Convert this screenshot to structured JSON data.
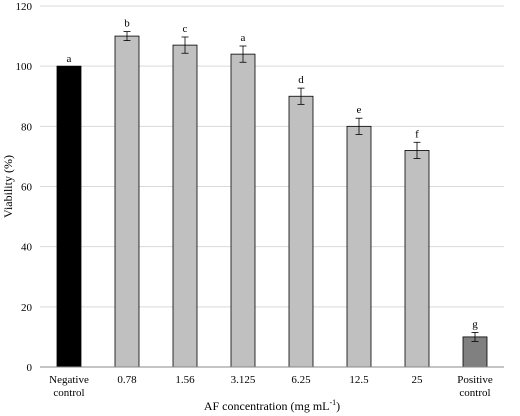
{
  "chart_data": {
    "type": "bar",
    "title": "",
    "xlabel": "AF concentration (mg mL",
    "xlabel_sup": "-1",
    "xlabel_close": ")",
    "ylabel": "Viability (%)",
    "ylim": [
      0,
      120
    ],
    "yticks": [
      0,
      20,
      40,
      60,
      80,
      100,
      120
    ],
    "grid": true,
    "categories": [
      [
        "Negative",
        "control"
      ],
      [
        "0.78"
      ],
      [
        "1.56"
      ],
      [
        "3.125"
      ],
      [
        "6.25"
      ],
      [
        "12.5"
      ],
      [
        "25"
      ],
      [
        "Positive",
        "control"
      ]
    ],
    "values": [
      100,
      110,
      107,
      104,
      90,
      80,
      72,
      10
    ],
    "errors": [
      0,
      1.5,
      2.7,
      2.7,
      2.7,
      2.7,
      2.7,
      1.5
    ],
    "letters": [
      "a",
      "b",
      "c",
      "a",
      "d",
      "e",
      "f",
      "g"
    ],
    "colors": [
      "#000000",
      "#c0c0c0",
      "#c0c0c0",
      "#c0c0c0",
      "#c0c0c0",
      "#c0c0c0",
      "#c0c0c0",
      "#808080"
    ]
  }
}
